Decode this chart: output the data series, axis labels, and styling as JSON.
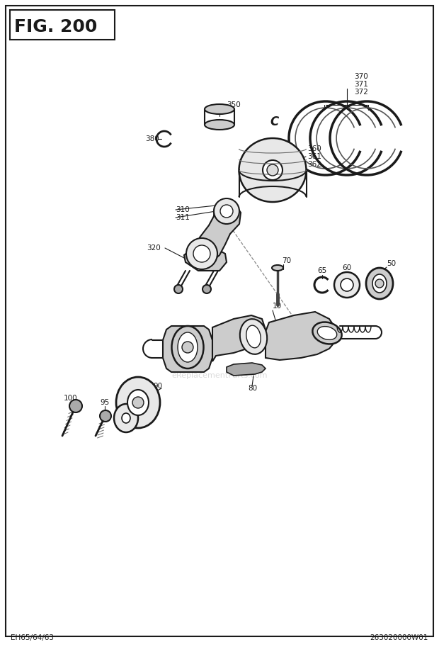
{
  "title": "FIG. 200",
  "bg_color": "#ffffff",
  "fig_width": 6.2,
  "fig_height": 9.13,
  "footer_left": "EH65/64/63",
  "footer_right": "263020000W01",
  "watermark": "eReplacementParts.com",
  "line_color": "#1a1a1a",
  "fill_light": "#e8e8e8",
  "fill_mid": "#cccccc",
  "fill_dark": "#aaaaaa"
}
